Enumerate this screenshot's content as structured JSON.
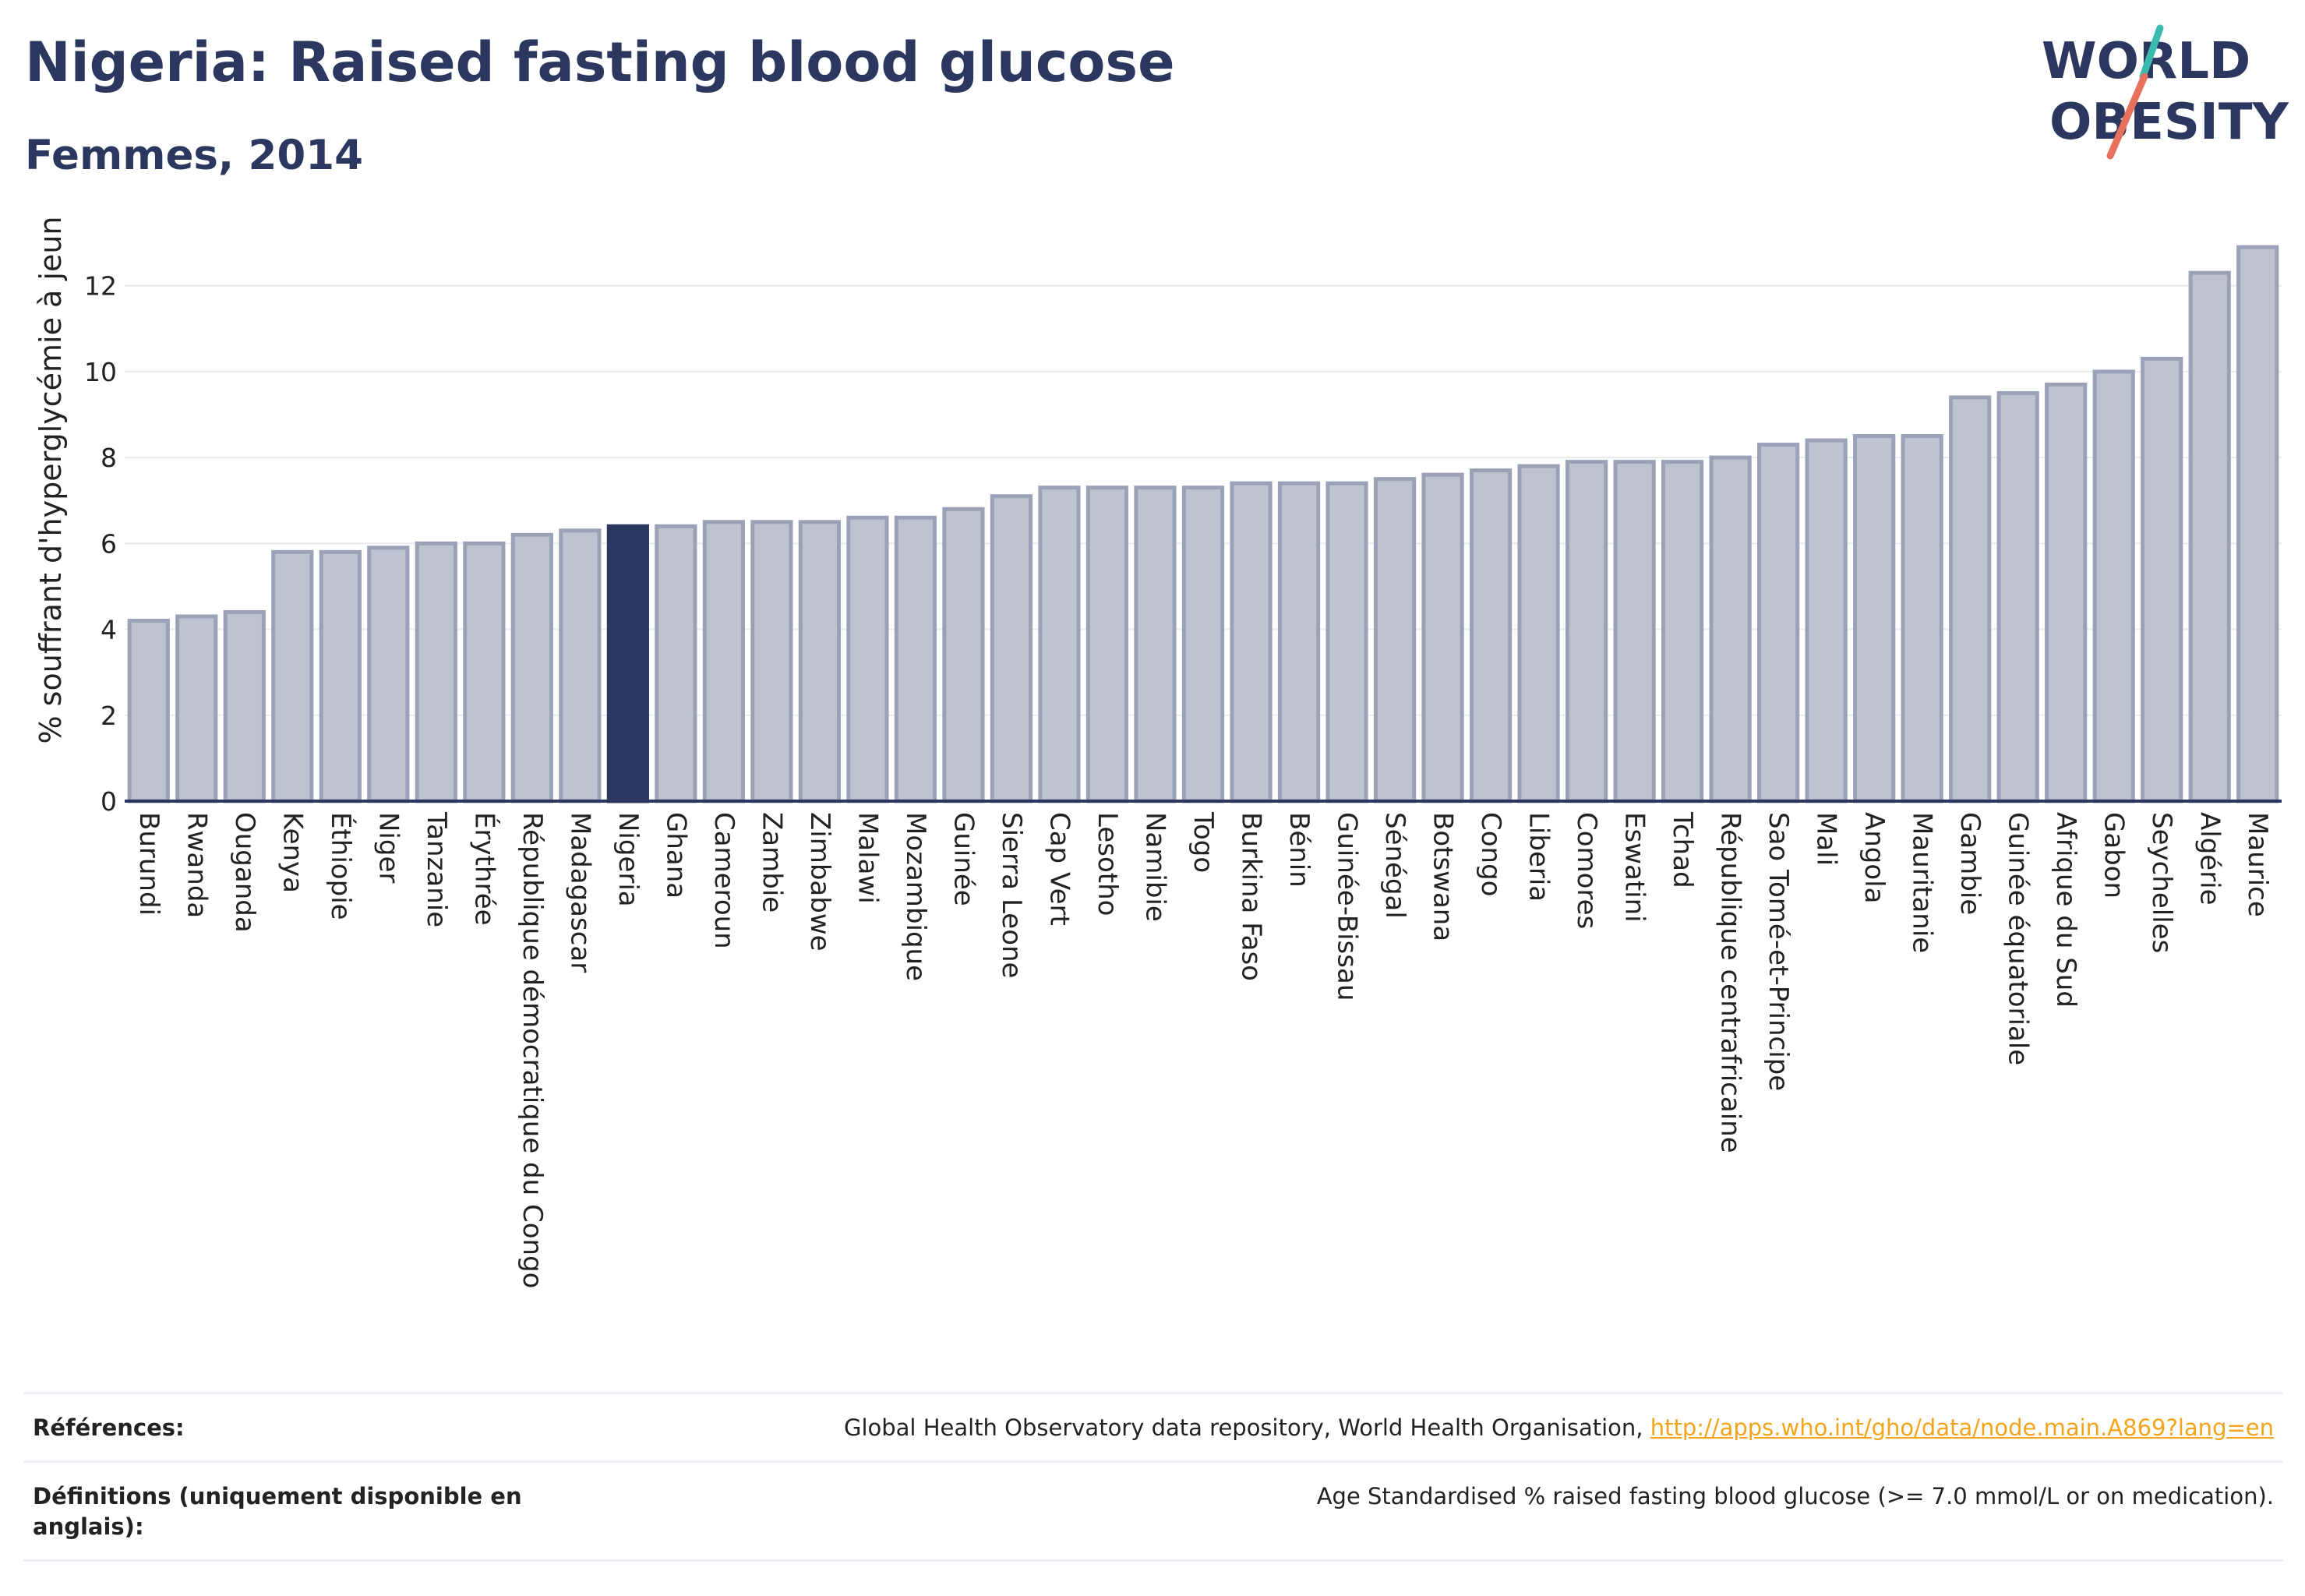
{
  "header": {
    "title": "Nigeria: Raised fasting blood glucose",
    "subtitle": "Femmes, 2014"
  },
  "logo": {
    "line1": "WORLD",
    "line2": "OBESITY"
  },
  "colors": {
    "bar_fill": "#bfc3d0",
    "bar_stroke": "#9ba2b8",
    "highlight_fill": "#2b375f",
    "grid": "#e9ebf0",
    "axis": "#2b375f",
    "logo_navy": "#2b375f",
    "logo_teal": "#3bbbb0",
    "logo_coral": "#e8715e"
  },
  "chart_data": {
    "type": "bar",
    "title": "Nigeria: Raised fasting blood glucose",
    "subtitle": "Femmes, 2014",
    "xlabel": "",
    "ylabel": "% souffrant d'hyperglycémie à jeun",
    "ylim": [
      0,
      13.5
    ],
    "yticks": [
      0,
      2,
      4,
      6,
      8,
      10,
      12
    ],
    "grid": true,
    "highlight": "Nigeria",
    "categories": [
      "Burundi",
      "Rwanda",
      "Ouganda",
      "Kenya",
      "Éthiopie",
      "Niger",
      "Tanzanie",
      "Érythrée",
      "République démocratique du Congo",
      "Madagascar",
      "Nigeria",
      "Ghana",
      "Cameroun",
      "Zambie",
      "Zimbabwe",
      "Malawi",
      "Mozambique",
      "Guinée",
      "Sierra Leone",
      "Cap Vert",
      "Lesotho",
      "Namibie",
      "Togo",
      "Burkina Faso",
      "Bénin",
      "Guinée-Bissau",
      "Sénégal",
      "Botswana",
      "Congo",
      "Liberia",
      "Comores",
      "Eswatini",
      "Tchad",
      "République centrafricaine",
      "Sao Tomé-et-Principe",
      "Mali",
      "Angola",
      "Mauritanie",
      "Gambie",
      "Guinée équatoriale",
      "Afrique du Sud",
      "Gabon",
      "Seychelles",
      "Algérie",
      "Maurice"
    ],
    "values": [
      4.2,
      4.3,
      4.4,
      5.8,
      5.8,
      5.9,
      6.0,
      6.0,
      6.2,
      6.3,
      6.4,
      6.4,
      6.5,
      6.5,
      6.5,
      6.6,
      6.6,
      6.8,
      7.1,
      7.3,
      7.3,
      7.3,
      7.3,
      7.4,
      7.4,
      7.4,
      7.5,
      7.6,
      7.7,
      7.8,
      7.9,
      7.9,
      7.9,
      8.0,
      8.3,
      8.4,
      8.5,
      8.5,
      9.4,
      9.5,
      9.7,
      10.0,
      10.3,
      12.3,
      12.9
    ]
  },
  "footer": {
    "references_label": "Références:",
    "references_text": "Global Health Observatory data repository, World Health Organisation,",
    "references_link": "http://apps.who.int/gho/data/node.main.A869?lang=en",
    "definitions_label": "Définitions (uniquement disponible en anglais):",
    "definitions_text": "Age Standardised % raised fasting blood glucose (>= 7.0 mmol/L or on medication)."
  }
}
